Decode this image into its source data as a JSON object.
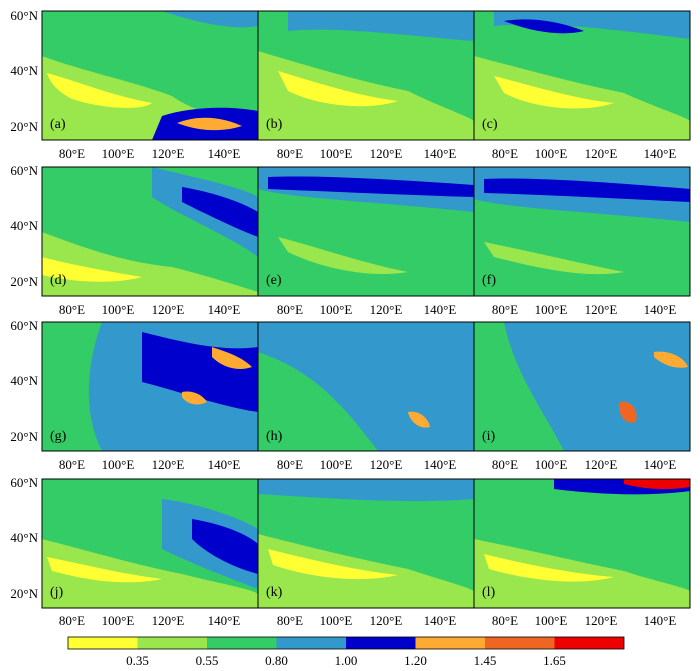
{
  "figure": {
    "panels": [
      {
        "letter": "(a)"
      },
      {
        "letter": "(b)"
      },
      {
        "letter": "(c)"
      },
      {
        "letter": "(d)"
      },
      {
        "letter": "(e)"
      },
      {
        "letter": "(f)"
      },
      {
        "letter": "(g)"
      },
      {
        "letter": "(h)"
      },
      {
        "letter": "(i)"
      },
      {
        "letter": "(j)"
      },
      {
        "letter": "(k)"
      },
      {
        "letter": "(l)"
      }
    ],
    "lon_ticks": [
      "80°E",
      "100°E",
      "120°E",
      "140°E"
    ],
    "lat_ticks": [
      "60°N",
      "40°N",
      "20°N"
    ]
  },
  "legend": {
    "colors": [
      "#ffff33",
      "#99e64d",
      "#33cc66",
      "#3399cc",
      "#0000cc",
      "#ffaa33",
      "#ee6622",
      "#ee0000"
    ],
    "labels": [
      "0.35",
      "0.55",
      "0.80",
      "1.00",
      "1.20",
      "1.45",
      "1.65"
    ]
  }
}
